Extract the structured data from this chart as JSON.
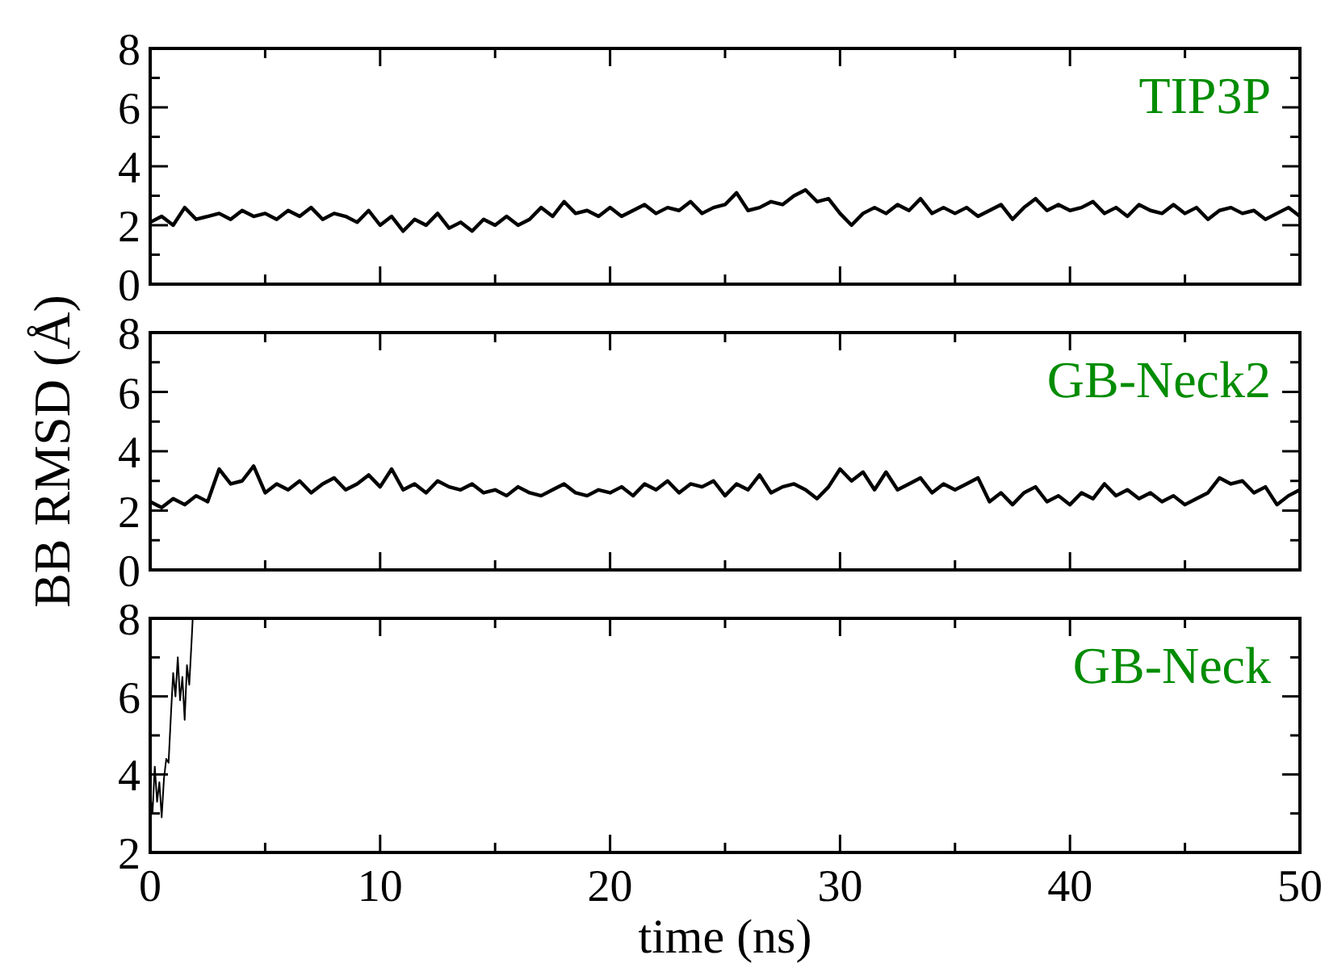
{
  "chart_data": [
    {
      "type": "line",
      "annotations": [
        "TIP3P"
      ],
      "xlim": [
        0,
        50
      ],
      "ylim": [
        0,
        8
      ],
      "xticks": [
        0,
        {
          "value": 5,
          "label": null
        },
        10,
        {
          "value": 15,
          "label": null
        },
        20,
        {
          "value": 25,
          "label": null
        },
        30,
        {
          "value": 35,
          "label": null
        },
        40,
        {
          "value": 45,
          "label": null
        },
        50
      ],
      "yticks": [
        0,
        {
          "value": 1,
          "label": null
        },
        2,
        {
          "value": 3,
          "label": null
        },
        4,
        {
          "value": 5,
          "label": null
        },
        6,
        {
          "value": 7,
          "label": null
        },
        8
      ],
      "tick_labels": "y",
      "grid": false,
      "series": [
        {
          "color": "#000000",
          "x": [
            0,
            0.5,
            1,
            1.5,
            2,
            2.5,
            3,
            3.5,
            4,
            4.5,
            5,
            5.5,
            6,
            6.5,
            7,
            7.5,
            8,
            8.5,
            9,
            9.5,
            10,
            10.5,
            11,
            11.5,
            12,
            12.5,
            13,
            13.5,
            14,
            14.5,
            15,
            15.5,
            16,
            16.5,
            17,
            17.5,
            18,
            18.5,
            19,
            19.5,
            20,
            20.5,
            21,
            21.5,
            22,
            22.5,
            23,
            23.5,
            24,
            24.5,
            25,
            25.5,
            26,
            26.5,
            27,
            27.5,
            28,
            28.5,
            29,
            29.5,
            30,
            30.5,
            31,
            31.5,
            32,
            32.5,
            33,
            33.5,
            34,
            34.5,
            35,
            35.5,
            36,
            36.5,
            37,
            37.5,
            38,
            38.5,
            39,
            39.5,
            40,
            40.5,
            41,
            41.5,
            42,
            42.5,
            43,
            43.5,
            44,
            44.5,
            45,
            45.5,
            46,
            46.5,
            47,
            47.5,
            48,
            48.5,
            49,
            49.5,
            50
          ],
          "values": [
            2.1,
            2.3,
            2.0,
            2.6,
            2.2,
            2.3,
            2.4,
            2.2,
            2.5,
            2.3,
            2.4,
            2.2,
            2.5,
            2.3,
            2.6,
            2.2,
            2.4,
            2.3,
            2.1,
            2.5,
            2.0,
            2.3,
            1.8,
            2.2,
            2.0,
            2.4,
            1.9,
            2.1,
            1.8,
            2.2,
            2.0,
            2.3,
            2.0,
            2.2,
            2.6,
            2.3,
            2.8,
            2.4,
            2.5,
            2.3,
            2.6,
            2.3,
            2.5,
            2.7,
            2.4,
            2.6,
            2.5,
            2.8,
            2.4,
            2.6,
            2.7,
            3.1,
            2.5,
            2.6,
            2.8,
            2.7,
            3.0,
            3.2,
            2.8,
            2.9,
            2.4,
            2.0,
            2.4,
            2.6,
            2.4,
            2.7,
            2.5,
            2.9,
            2.4,
            2.6,
            2.4,
            2.6,
            2.3,
            2.5,
            2.7,
            2.2,
            2.6,
            2.9,
            2.5,
            2.7,
            2.5,
            2.6,
            2.8,
            2.4,
            2.6,
            2.3,
            2.7,
            2.5,
            2.4,
            2.7,
            2.4,
            2.6,
            2.2,
            2.5,
            2.6,
            2.4,
            2.5,
            2.2,
            2.4,
            2.6,
            2.3
          ]
        }
      ]
    },
    {
      "type": "line",
      "ylabel": "BB RMSD (Å)",
      "annotations": [
        "GB-Neck2"
      ],
      "xlim": [
        0,
        50
      ],
      "ylim": [
        0,
        8
      ],
      "xticks": [
        0,
        {
          "value": 5,
          "label": null
        },
        10,
        {
          "value": 15,
          "label": null
        },
        20,
        {
          "value": 25,
          "label": null
        },
        30,
        {
          "value": 35,
          "label": null
        },
        40,
        {
          "value": 45,
          "label": null
        },
        50
      ],
      "yticks": [
        0,
        {
          "value": 1,
          "label": null
        },
        2,
        {
          "value": 3,
          "label": null
        },
        4,
        {
          "value": 5,
          "label": null
        },
        6,
        {
          "value": 7,
          "label": null
        },
        8
      ],
      "tick_labels": "y",
      "grid": false,
      "series": [
        {
          "color": "#000000",
          "x": [
            0,
            0.5,
            1,
            1.5,
            2,
            2.5,
            3,
            3.5,
            4,
            4.5,
            5,
            5.5,
            6,
            6.5,
            7,
            7.5,
            8,
            8.5,
            9,
            9.5,
            10,
            10.5,
            11,
            11.5,
            12,
            12.5,
            13,
            13.5,
            14,
            14.5,
            15,
            15.5,
            16,
            16.5,
            17,
            17.5,
            18,
            18.5,
            19,
            19.5,
            20,
            20.5,
            21,
            21.5,
            22,
            22.5,
            23,
            23.5,
            24,
            24.5,
            25,
            25.5,
            26,
            26.5,
            27,
            27.5,
            28,
            28.5,
            29,
            29.5,
            30,
            30.5,
            31,
            31.5,
            32,
            32.5,
            33,
            33.5,
            34,
            34.5,
            35,
            35.5,
            36,
            36.5,
            37,
            37.5,
            38,
            38.5,
            39,
            39.5,
            40,
            40.5,
            41,
            41.5,
            42,
            42.5,
            43,
            43.5,
            44,
            44.5,
            45,
            45.5,
            46,
            46.5,
            47,
            47.5,
            48,
            48.5,
            49,
            49.5,
            50
          ],
          "values": [
            2.3,
            2.1,
            2.4,
            2.2,
            2.5,
            2.3,
            3.4,
            2.9,
            3.0,
            3.5,
            2.6,
            2.9,
            2.7,
            3.0,
            2.6,
            2.9,
            3.1,
            2.7,
            2.9,
            3.2,
            2.8,
            3.4,
            2.7,
            2.9,
            2.6,
            3.0,
            2.8,
            2.7,
            2.9,
            2.6,
            2.7,
            2.5,
            2.8,
            2.6,
            2.5,
            2.7,
            2.9,
            2.6,
            2.5,
            2.7,
            2.6,
            2.8,
            2.5,
            2.9,
            2.7,
            3.0,
            2.6,
            2.9,
            2.8,
            3.0,
            2.5,
            2.9,
            2.7,
            3.2,
            2.6,
            2.8,
            2.9,
            2.7,
            2.4,
            2.8,
            3.4,
            3.0,
            3.3,
            2.7,
            3.3,
            2.7,
            2.9,
            3.1,
            2.6,
            2.9,
            2.7,
            2.9,
            3.1,
            2.3,
            2.6,
            2.2,
            2.6,
            2.8,
            2.3,
            2.5,
            2.2,
            2.6,
            2.4,
            2.9,
            2.5,
            2.7,
            2.4,
            2.6,
            2.3,
            2.5,
            2.2,
            2.4,
            2.6,
            3.1,
            2.9,
            3.0,
            2.6,
            2.8,
            2.2,
            2.5,
            2.7
          ]
        }
      ]
    },
    {
      "type": "line",
      "xlabel": "time (ns)",
      "annotations": [
        "GB-Neck"
      ],
      "xlim": [
        0,
        50
      ],
      "ylim": [
        2,
        8
      ],
      "xticks": [
        0,
        {
          "value": 5,
          "label": null
        },
        10,
        {
          "value": 15,
          "label": null
        },
        20,
        {
          "value": 25,
          "label": null
        },
        30,
        {
          "value": 35,
          "label": null
        },
        40,
        {
          "value": 45,
          "label": null
        },
        50
      ],
      "yticks": [
        2,
        {
          "value": 3,
          "label": null
        },
        4,
        {
          "value": 5,
          "label": null
        },
        6,
        {
          "value": 7,
          "label": null
        },
        8
      ],
      "grid": false,
      "series": [
        {
          "color": "#000000",
          "x": [
            0,
            0.1,
            0.2,
            0.3,
            0.4,
            0.5,
            0.6,
            0.7,
            0.8,
            0.9,
            1.0,
            1.1,
            1.2,
            1.3,
            1.4,
            1.5,
            1.6,
            1.7,
            1.8,
            1.85
          ],
          "values": [
            3.5,
            3.0,
            4.2,
            3.3,
            3.8,
            2.9,
            3.9,
            4.4,
            4.3,
            5.5,
            6.6,
            6.0,
            7.0,
            5.9,
            6.5,
            5.4,
            6.8,
            6.3,
            7.4,
            8.0
          ]
        }
      ]
    }
  ]
}
